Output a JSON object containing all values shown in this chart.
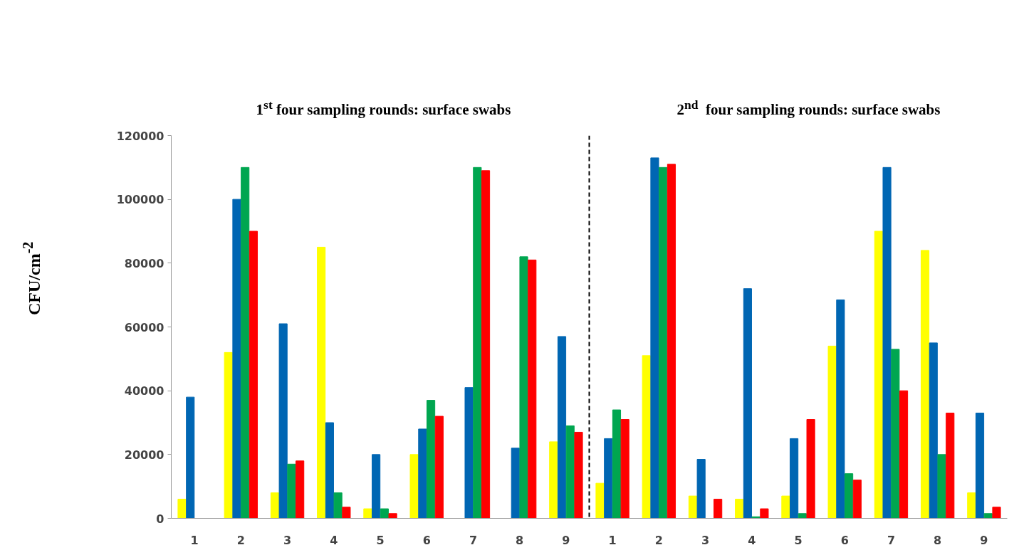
{
  "chart_data": {
    "type": "bar",
    "categories": [
      "1",
      "2",
      "3",
      "4",
      "5",
      "6",
      "7",
      "8",
      "9",
      "1",
      "2",
      "3",
      "4",
      "5",
      "6",
      "7",
      "8",
      "9"
    ],
    "ylabel": "CFU/cm$^{-2}$",
    "annotations": [
      "1$^{st}$ four sampling rounds: surface swabs",
      "2$^{nd}$  four sampling rounds: surface swabs"
    ],
    "ylim": [
      0,
      120000
    ],
    "yticks": [
      0,
      20000,
      40000,
      60000,
      80000,
      100000,
      120000
    ],
    "grid": false,
    "series": [
      {
        "color": "#ffff00",
        "values": [
          6000,
          52000,
          8000,
          85000,
          3000,
          20000,
          null,
          null,
          24000,
          11000,
          51000,
          7000,
          6000,
          7000,
          54000,
          90000,
          84000,
          8000
        ]
      },
      {
        "color": "#0066b3",
        "values": [
          38000,
          100000,
          61000,
          30000,
          20000,
          28000,
          41000,
          22000,
          57000,
          25000,
          113000,
          18500,
          72000,
          25000,
          68500,
          110000,
          55000,
          33000
        ]
      },
      {
        "color": "#00a650",
        "values": [
          null,
          110000,
          17000,
          8000,
          3000,
          37000,
          110000,
          82000,
          29000,
          34000,
          110000,
          null,
          500,
          1500,
          14000,
          53000,
          20000,
          1500
        ]
      },
      {
        "color": "#ff0000",
        "values": [
          null,
          90000,
          18000,
          3500,
          1500,
          32000,
          109000,
          81000,
          27000,
          31000,
          111000,
          6000,
          3000,
          31000,
          12000,
          40000,
          33000,
          3500
        ]
      }
    ]
  }
}
